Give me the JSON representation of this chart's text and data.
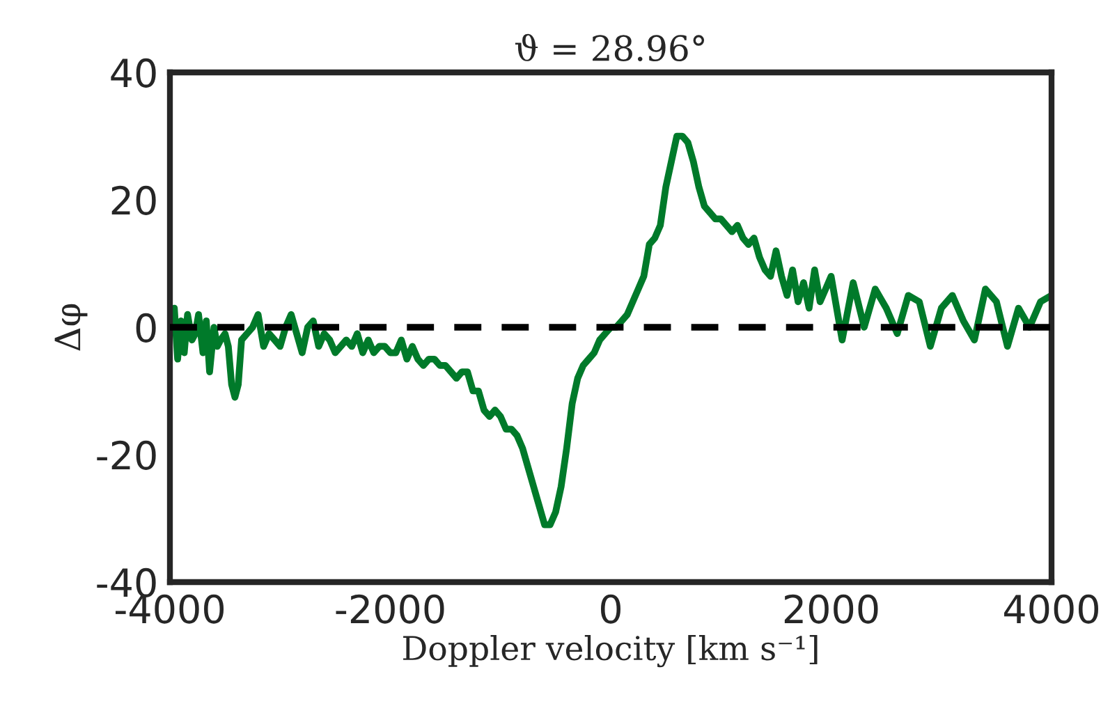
{
  "chart_data": {
    "type": "line",
    "title": "ϑ = 28.96°",
    "xlabel": "Doppler velocity [km s⁻¹]",
    "ylabel": "Δφ",
    "xlim": [
      -4000,
      4000
    ],
    "ylim": [
      -40,
      40
    ],
    "xticks": [
      -4000,
      -2000,
      0,
      2000,
      4000
    ],
    "yticks": [
      -40,
      -20,
      0,
      20,
      40
    ],
    "grid": false,
    "legend": false,
    "marker": "none",
    "line_style": "solid",
    "ref_lines": [
      {
        "axis": "y",
        "value": 0,
        "color": "#000000",
        "line_style": "dashed"
      }
    ],
    "series": [
      {
        "color": "#007a2a",
        "x": [
          -4000,
          -3960,
          -3930,
          -3900,
          -3870,
          -3840,
          -3800,
          -3770,
          -3740,
          -3700,
          -3670,
          -3640,
          -3600,
          -3570,
          -3540,
          -3500,
          -3470,
          -3440,
          -3410,
          -3380,
          -3350,
          -3300,
          -3250,
          -3200,
          -3150,
          -3100,
          -3050,
          -3000,
          -2950,
          -2900,
          -2850,
          -2800,
          -2750,
          -2700,
          -2650,
          -2600,
          -2550,
          -2500,
          -2450,
          -2400,
          -2350,
          -2300,
          -2250,
          -2200,
          -2150,
          -2100,
          -2050,
          -2000,
          -1950,
          -1900,
          -1850,
          -1800,
          -1750,
          -1700,
          -1650,
          -1600,
          -1550,
          -1500,
          -1450,
          -1400,
          -1350,
          -1300,
          -1250,
          -1200,
          -1150,
          -1100,
          -1050,
          -1000,
          -950,
          -900,
          -850,
          -800,
          -750,
          -700,
          -650,
          -600,
          -550,
          -500,
          -450,
          -400,
          -350,
          -300,
          -250,
          -200,
          -150,
          -100,
          -50,
          0,
          50,
          100,
          150,
          200,
          250,
          300,
          350,
          400,
          450,
          500,
          550,
          600,
          650,
          700,
          750,
          800,
          850,
          900,
          950,
          1000,
          1050,
          1100,
          1150,
          1200,
          1250,
          1300,
          1350,
          1400,
          1450,
          1500,
          1550,
          1600,
          1650,
          1700,
          1750,
          1800,
          1850,
          1900,
          1950,
          2000,
          2100,
          2200,
          2300,
          2400,
          2500,
          2600,
          2700,
          2800,
          2900,
          3000,
          3100,
          3200,
          3300,
          3400,
          3500,
          3600,
          3700,
          3800,
          3900,
          4000
        ],
        "values": [
          -1,
          3,
          -5,
          1,
          -4,
          2,
          -2,
          -1,
          2,
          -4,
          1,
          -7,
          0,
          -3,
          -2,
          -1,
          -3,
          -9,
          -11,
          -9,
          -2,
          -1,
          0,
          2,
          -3,
          -1,
          -2,
          -3,
          0,
          2,
          -1,
          -4,
          0,
          1,
          -3,
          -1,
          -2,
          -4,
          -3,
          -2,
          -3,
          -1,
          -4,
          -2,
          -4,
          -3,
          -3,
          -4,
          -4,
          -2,
          -5,
          -3,
          -5,
          -6,
          -5,
          -5,
          -6,
          -6,
          -7,
          -8,
          -7,
          -7,
          -10,
          -10,
          -13,
          -14,
          -13,
          -14,
          -16,
          -16,
          -17,
          -19,
          -22,
          -25,
          -28,
          -31,
          -31,
          -29,
          -25,
          -19,
          -12,
          -8,
          -6,
          -5,
          -4,
          -2,
          -1,
          0,
          0,
          1,
          2,
          4,
          6,
          8,
          13,
          14,
          16,
          22,
          26,
          30,
          30,
          29,
          26,
          22,
          19,
          18,
          17,
          17,
          16,
          15,
          16,
          14,
          13,
          14,
          11,
          9,
          8,
          12,
          8,
          5,
          9,
          4,
          7,
          3,
          9,
          4,
          6,
          8,
          -2,
          7,
          0,
          6,
          3,
          -1,
          5,
          4,
          -3,
          3,
          5,
          1,
          -2,
          6,
          4,
          -3,
          3,
          0,
          4,
          5
        ]
      }
    ]
  }
}
